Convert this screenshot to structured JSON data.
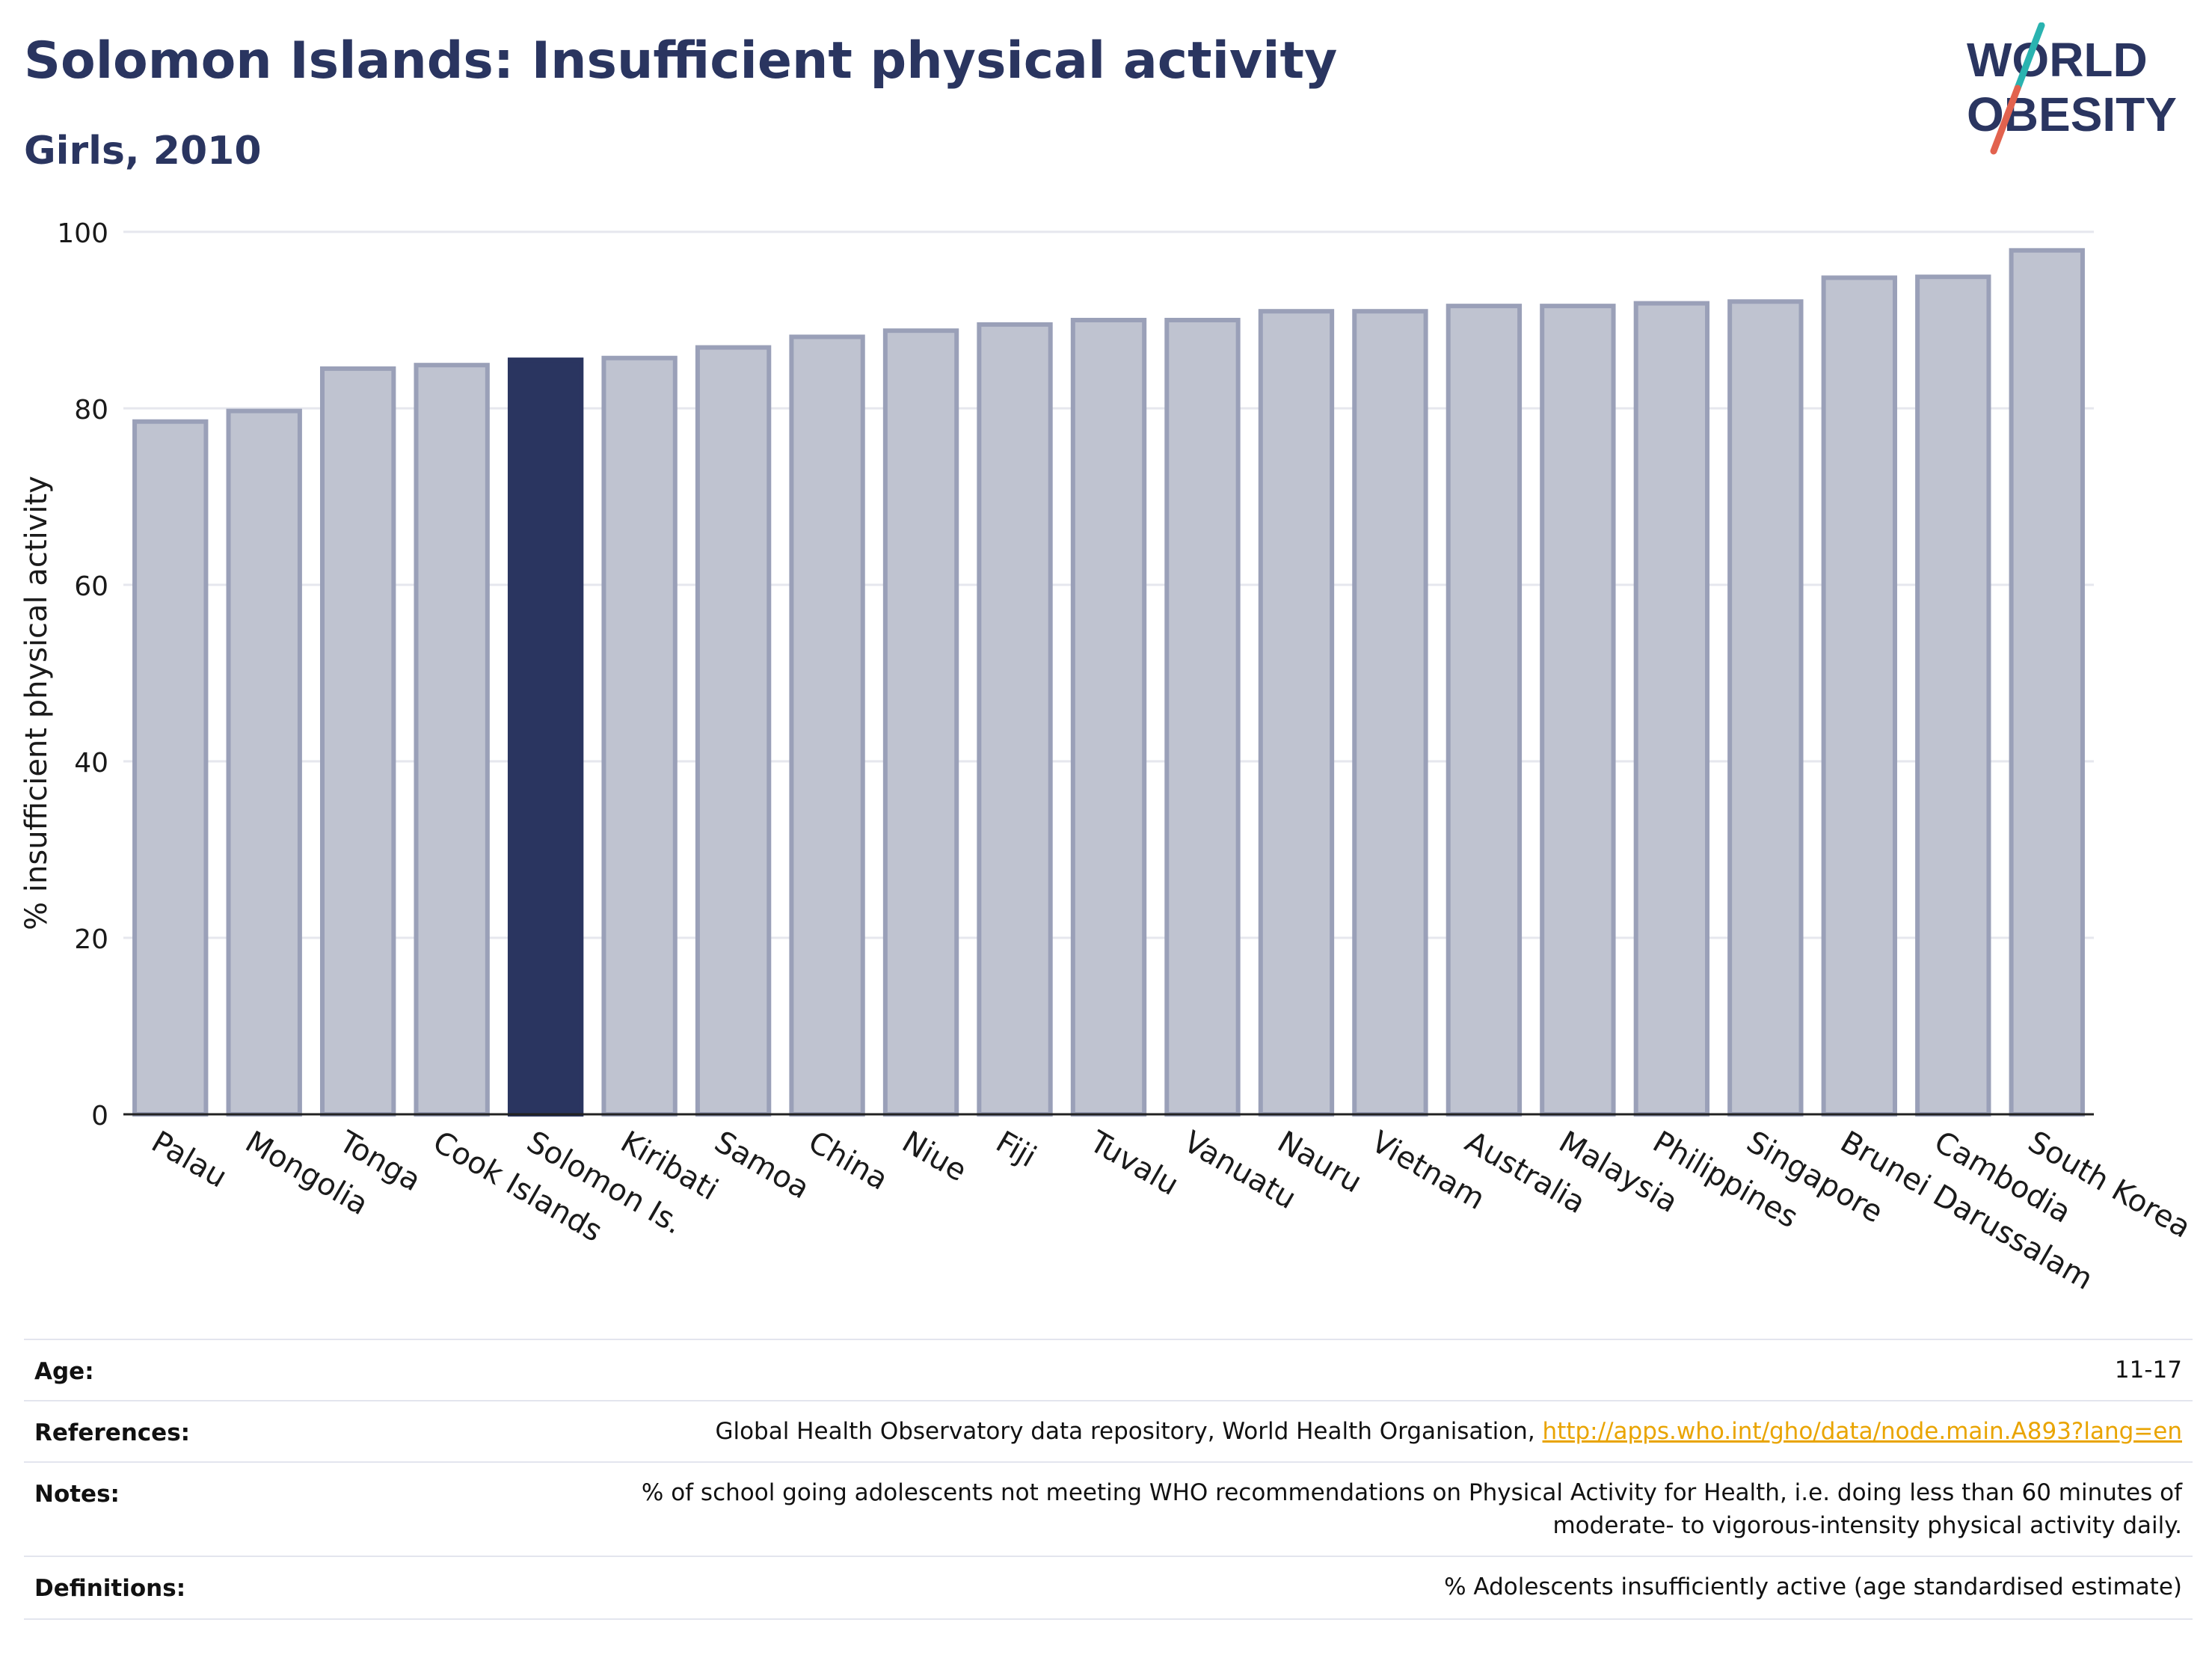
{
  "header": {
    "title": "Solomon Islands: Insufficient physical activity",
    "subtitle": "Girls, 2010",
    "logo_line1": "WORLD",
    "logo_line2": "OBESITY"
  },
  "chart_data": {
    "type": "bar",
    "ylabel": "% insufficient physical activity",
    "xlabel": "",
    "ylim": [
      0,
      100
    ],
    "yticks": [
      0,
      20,
      40,
      60,
      80,
      100
    ],
    "highlight": "Solomon Is.",
    "grid": true,
    "colors": {
      "bar": "#bfc3d0",
      "bar_edge": "#9aa0b8",
      "highlight": "#2a3560",
      "grid": "#e6e7ee",
      "axis": "#222222"
    },
    "categories": [
      "Palau",
      "Mongolia",
      "Tonga",
      "Cook Islands",
      "Solomon Is.",
      "Kiribati",
      "Samoa",
      "China",
      "Niue",
      "Fiji",
      "Tuvalu",
      "Vanuatu",
      "Nauru",
      "Vietnam",
      "Australia",
      "Malaysia",
      "Philippines",
      "Singapore",
      "Brunei Darussalam",
      "Cambodia",
      "South Korea"
    ],
    "values": [
      78.5,
      79.7,
      84.5,
      84.9,
      85.5,
      85.7,
      86.9,
      88.1,
      88.8,
      89.5,
      90.0,
      90.0,
      91.0,
      91.0,
      91.6,
      91.6,
      91.9,
      92.1,
      94.8,
      94.9,
      97.9
    ]
  },
  "info": {
    "age_label": "Age:",
    "age_value": "11-17",
    "references_label": "References:",
    "references_text": "Global Health Observatory data repository, World Health Organisation, ",
    "references_link": "http://apps.who.int/gho/data/node.main.A893?lang=en",
    "notes_label": "Notes:",
    "notes_line1": "% of school going adolescents not meeting WHO recommendations on Physical Activity for Health, i.e. doing less than 60 minutes of",
    "notes_line2": "moderate- to vigorous-intensity physical activity daily.",
    "definitions_label": "Definitions:",
    "definitions_value": "% Adolescents insufficiently active (age standardised estimate)"
  }
}
